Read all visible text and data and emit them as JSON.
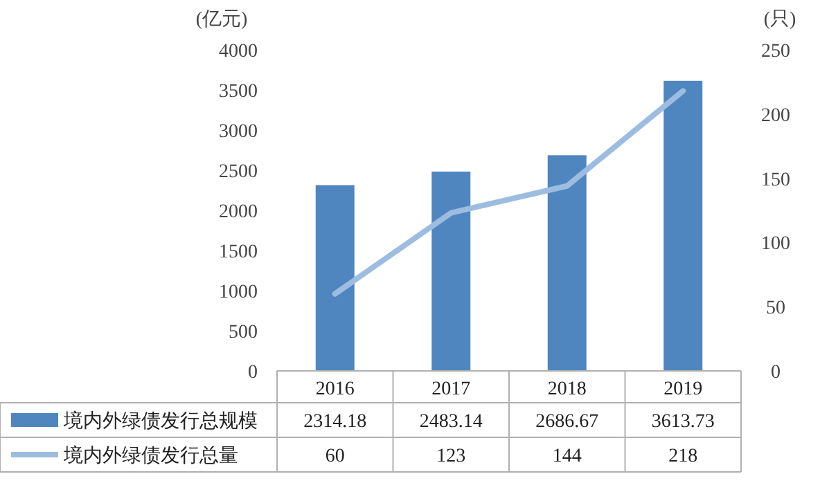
{
  "chart_data": {
    "type": "bar",
    "ylabel": "(亿元)",
    "y2label": "(只)",
    "categories": [
      "2016",
      "2017",
      "2018",
      "2019"
    ],
    "series": [
      {
        "name": "境内外绿债发行总规模",
        "color": "#4f86c0",
        "values": [
          2314.18,
          2483.14,
          2686.67,
          3613.73
        ]
      },
      {
        "name": "境内外绿债发行总量",
        "type": "line",
        "axis": "y2",
        "color": "#9dbde0",
        "values": [
          60,
          123,
          144,
          218
        ]
      }
    ],
    "ylim": [
      0,
      4000
    ],
    "yticks": [
      0,
      500,
      1000,
      1500,
      2000,
      2500,
      3000,
      3500,
      4000
    ],
    "y2lim": [
      0,
      250
    ],
    "y2ticks": [
      0,
      50,
      100,
      150,
      200,
      250
    ],
    "data_labels": true,
    "legend": "bottom",
    "grid": false
  }
}
